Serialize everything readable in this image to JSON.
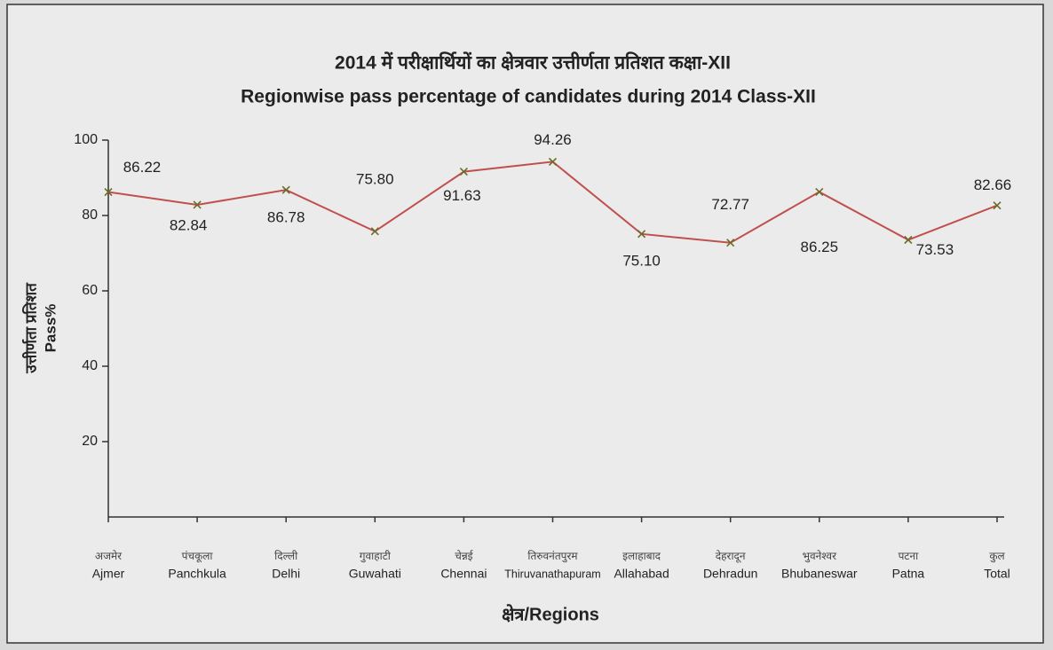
{
  "chart_data": {
    "type": "line",
    "title": "2014 में परीक्षार्थियों का क्षेत्रवार उत्तीर्णता प्रतिशत कक्षा-XII",
    "subtitle": "Regionwise pass percentage of candidates during 2014 Class-XII",
    "x_label": "क्षेत्र/Regions",
    "y_label": [
      "उत्तीर्णता प्रतिशत",
      "Pass%"
    ],
    "categories": [
      "Ajmer",
      "Panchkula",
      "Delhi",
      "Guwahati",
      "Chennai",
      "Thiruvanathapuram",
      "Allahabad",
      "Dehradun",
      "Bhubaneswar",
      "Patna",
      "Total"
    ],
    "categories_hindi": [
      "अजमेर",
      "पंचकूला",
      "दिल्ली",
      "गुवाहाटी",
      "चेन्नई",
      "तिरुवनंतपुरम",
      "इलाहाबाद",
      "देहरादून",
      "भुवनेश्वर",
      "पटना",
      "कुल"
    ],
    "series": [
      {
        "color": "#c0504d",
        "values": [
          86.22,
          82.84,
          86.78,
          75.8,
          91.63,
          94.26,
          75.1,
          72.77,
          86.25,
          73.53,
          82.66
        ],
        "value_labels": [
          "86.22",
          "82.84",
          "86.78",
          "75.80",
          "91.63",
          "94.26",
          "75.10",
          "72.77",
          "86.25",
          "73.53",
          "82.66"
        ]
      }
    ],
    "marker_color": "#6b6b2a",
    "ylim": [
      0,
      100
    ],
    "yticks": [
      20,
      40,
      60,
      80,
      100
    ]
  }
}
